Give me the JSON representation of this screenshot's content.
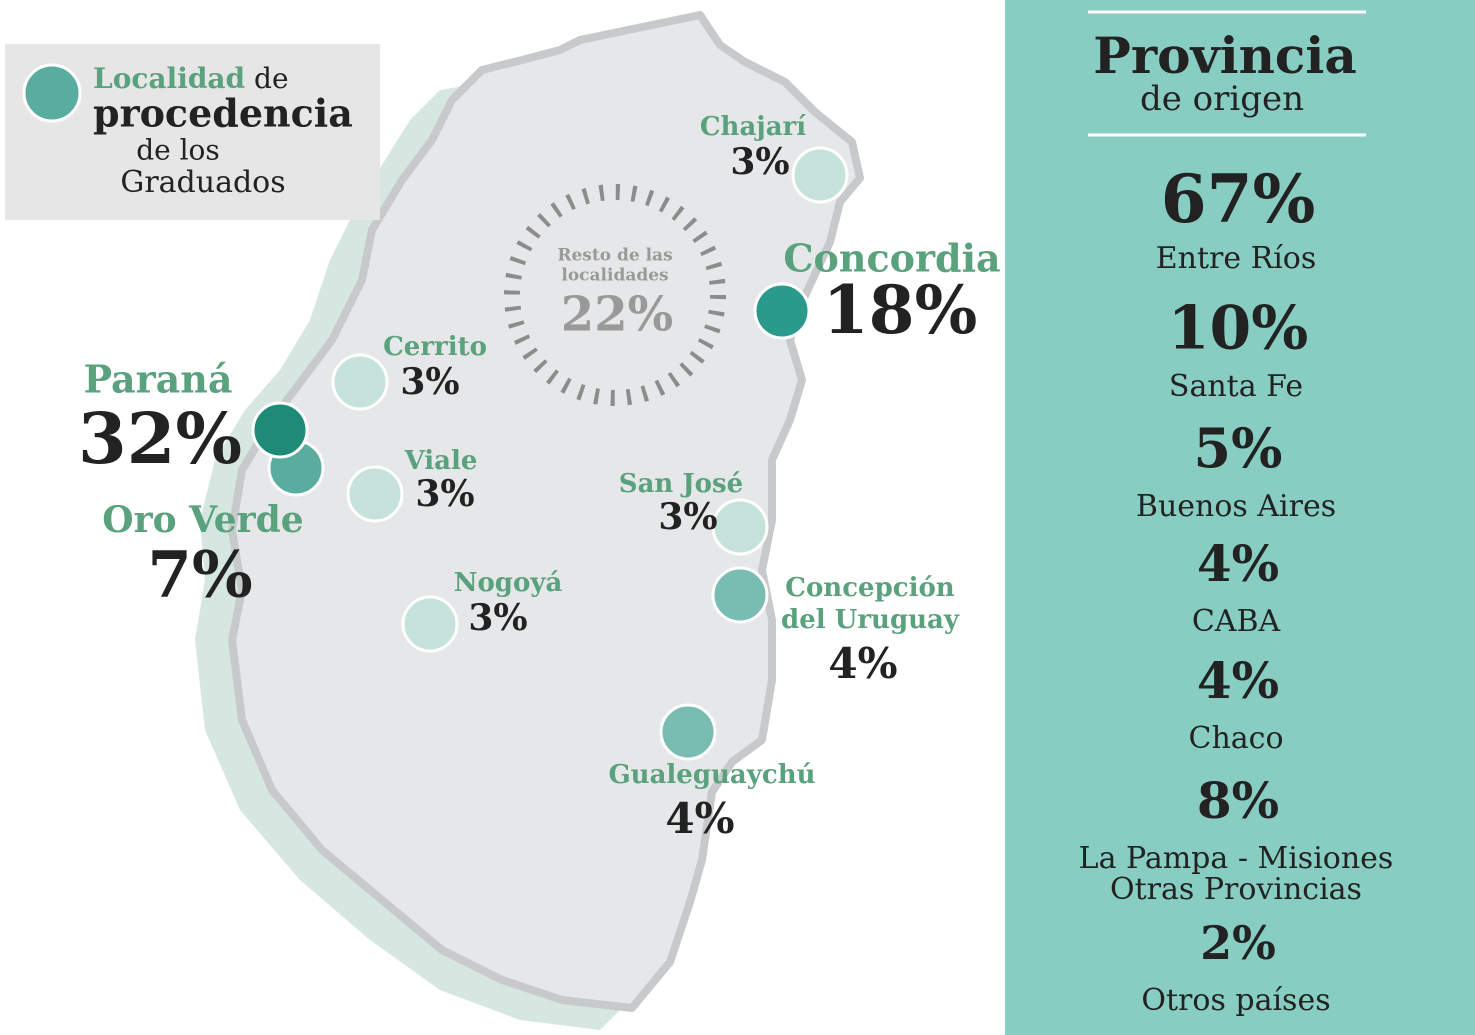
{
  "legend": {
    "title_highlight": "Localidad",
    "title_rest": "de",
    "line2": "procedencia",
    "line3": "de los",
    "line4": "Graduados"
  },
  "localities": [
    {
      "name": [
        "Chajarí"
      ],
      "value": "3%"
    },
    {
      "name": [
        "Concordia"
      ],
      "value": "18%"
    },
    {
      "name": [
        "Cerrito"
      ],
      "value": "3%"
    },
    {
      "name": [
        "Paraná"
      ],
      "value": "32%"
    },
    {
      "name": [
        "Oro Verde"
      ],
      "value": "7%"
    },
    {
      "name": [
        "Viale"
      ],
      "value": "3%"
    },
    {
      "name": [
        "San José"
      ],
      "value": "3%"
    },
    {
      "name": [
        "Concepción",
        "del Uruguay"
      ],
      "value": "4%"
    },
    {
      "name": [
        "Nogoyá"
      ],
      "value": "3%"
    },
    {
      "name": [
        "Gualeguaychú"
      ],
      "value": "4%"
    }
  ],
  "rest": {
    "label": [
      "Resto de las",
      "localidades"
    ],
    "value": "22%"
  },
  "provinces_panel": {
    "title": "Provincia",
    "subtitle": "de origen",
    "items": [
      {
        "value": "67%",
        "name": [
          "Entre Ríos"
        ]
      },
      {
        "value": "10%",
        "name": [
          "Santa Fe"
        ]
      },
      {
        "value": "5%",
        "name": [
          "Buenos Aires"
        ]
      },
      {
        "value": "4%",
        "name": [
          "CABA"
        ]
      },
      {
        "value": "4%",
        "name": [
          "Chaco"
        ]
      },
      {
        "value": "8%",
        "name": [
          "La Pampa - Misiones",
          "Otras Provincias"
        ]
      },
      {
        "value": "2%",
        "name": [
          "Otros países"
        ]
      }
    ]
  }
}
